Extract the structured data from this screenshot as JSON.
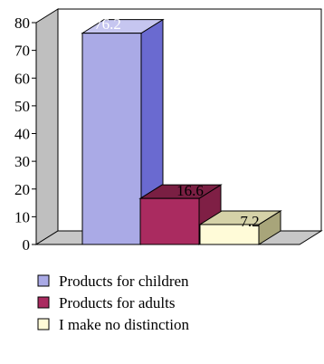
{
  "chart_data": {
    "type": "bar",
    "categories": [
      "Products for children",
      "Products for adults",
      "I make no distinction"
    ],
    "values": [
      76.2,
      16.6,
      7.2
    ],
    "data_labels": [
      "76.2",
      "16.6",
      "7.2"
    ],
    "ylim": [
      0,
      80
    ],
    "yticks": [
      "0",
      "10",
      "20",
      "30",
      "40",
      "50",
      "60",
      "70",
      "80"
    ],
    "grid": false,
    "three_d": true,
    "legend_placement": "bottom",
    "colors": {
      "bar_fronts": [
        "#aaaae6",
        "#aa2b60",
        "#fffbd8"
      ],
      "bar_sides": [
        "#6a6ad0",
        "#7f1f45",
        "#a8a57a"
      ],
      "bar_tops": [
        "#c6c6f0",
        "#7a1f43",
        "#d5d2a8"
      ],
      "back_wall": "#ffffff",
      "left_wall": "#bfbfbf",
      "floor": "#c7c7c7"
    }
  }
}
